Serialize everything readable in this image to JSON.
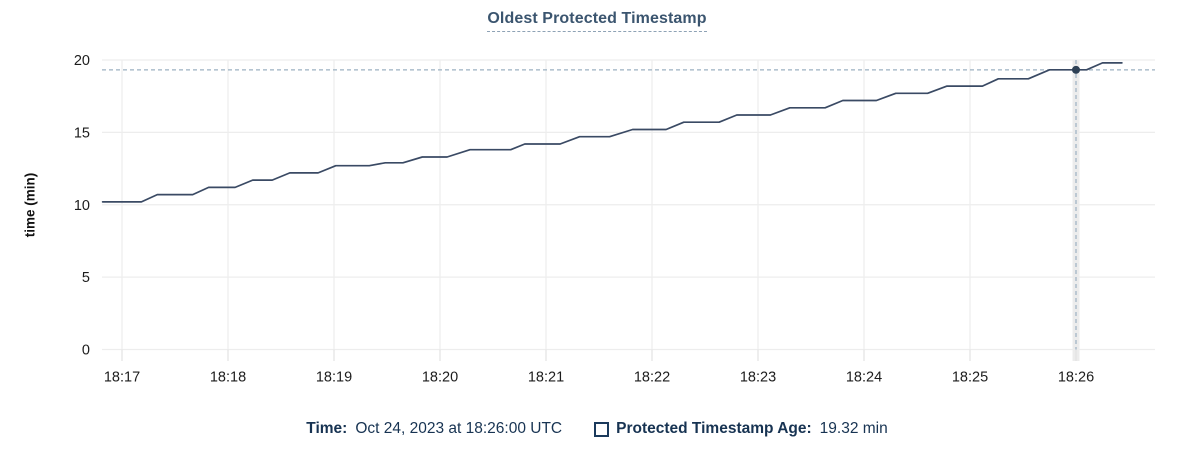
{
  "chart_data": {
    "type": "line",
    "title": "Oldest Protected Timestamp",
    "ylabel": "time (min)",
    "xlabel": "",
    "ylim": [
      0,
      20
    ],
    "y_ticks": [
      0,
      5,
      10,
      15,
      20
    ],
    "x_tick_labels": [
      "18:17",
      "18:18",
      "18:19",
      "18:20",
      "18:21",
      "18:22",
      "18:23",
      "18:24",
      "18:25",
      "18:26"
    ],
    "x_tick_seconds": [
      0,
      60,
      120,
      180,
      240,
      300,
      360,
      420,
      480,
      540
    ],
    "grid": true,
    "legend_position": "bottom",
    "series": [
      {
        "name": "Protected Timestamp Age",
        "unit": "min",
        "points": [
          [
            -11,
            10.2
          ],
          [
            11,
            10.2
          ],
          [
            20,
            10.7
          ],
          [
            40,
            10.7
          ],
          [
            49,
            11.2
          ],
          [
            64,
            11.2
          ],
          [
            74,
            11.7
          ],
          [
            85,
            11.7
          ],
          [
            95,
            12.2
          ],
          [
            111,
            12.2
          ],
          [
            121,
            12.7
          ],
          [
            140,
            12.7
          ],
          [
            149,
            12.9
          ],
          [
            159,
            12.9
          ],
          [
            170,
            13.3
          ],
          [
            184,
            13.3
          ],
          [
            197,
            13.8
          ],
          [
            220,
            13.8
          ],
          [
            228,
            14.2
          ],
          [
            248,
            14.2
          ],
          [
            259,
            14.7
          ],
          [
            276,
            14.7
          ],
          [
            289,
            15.2
          ],
          [
            308,
            15.2
          ],
          [
            318,
            15.7
          ],
          [
            338,
            15.7
          ],
          [
            348,
            16.2
          ],
          [
            367,
            16.2
          ],
          [
            378,
            16.7
          ],
          [
            398,
            16.7
          ],
          [
            408,
            17.2
          ],
          [
            427,
            17.2
          ],
          [
            438,
            17.7
          ],
          [
            456,
            17.7
          ],
          [
            467,
            18.2
          ],
          [
            487,
            18.2
          ],
          [
            496,
            18.7
          ],
          [
            513,
            18.7
          ],
          [
            525,
            19.32
          ],
          [
            546,
            19.32
          ],
          [
            555,
            19.8
          ],
          [
            566,
            19.8
          ]
        ]
      }
    ],
    "crosshair": {
      "t_seconds": 540,
      "x_label": "18:26",
      "value": 19.32
    }
  },
  "legend": {
    "time_label": "Time:",
    "time_value": "Oct 24, 2023 at 18:26:00 UTC",
    "series_label": "Protected Timestamp Age:",
    "series_value": "19.32 min"
  },
  "colors": {
    "title": "#3b556f",
    "legend_text": "#173352",
    "series_line": "#3a4a64",
    "dot": "#2e4156",
    "crosshair": "#9cb1c2",
    "gridline": "#ededed",
    "tick": "#e2e2e2",
    "hover_band": "#ececec",
    "axis_label": "#1c1c1c"
  }
}
